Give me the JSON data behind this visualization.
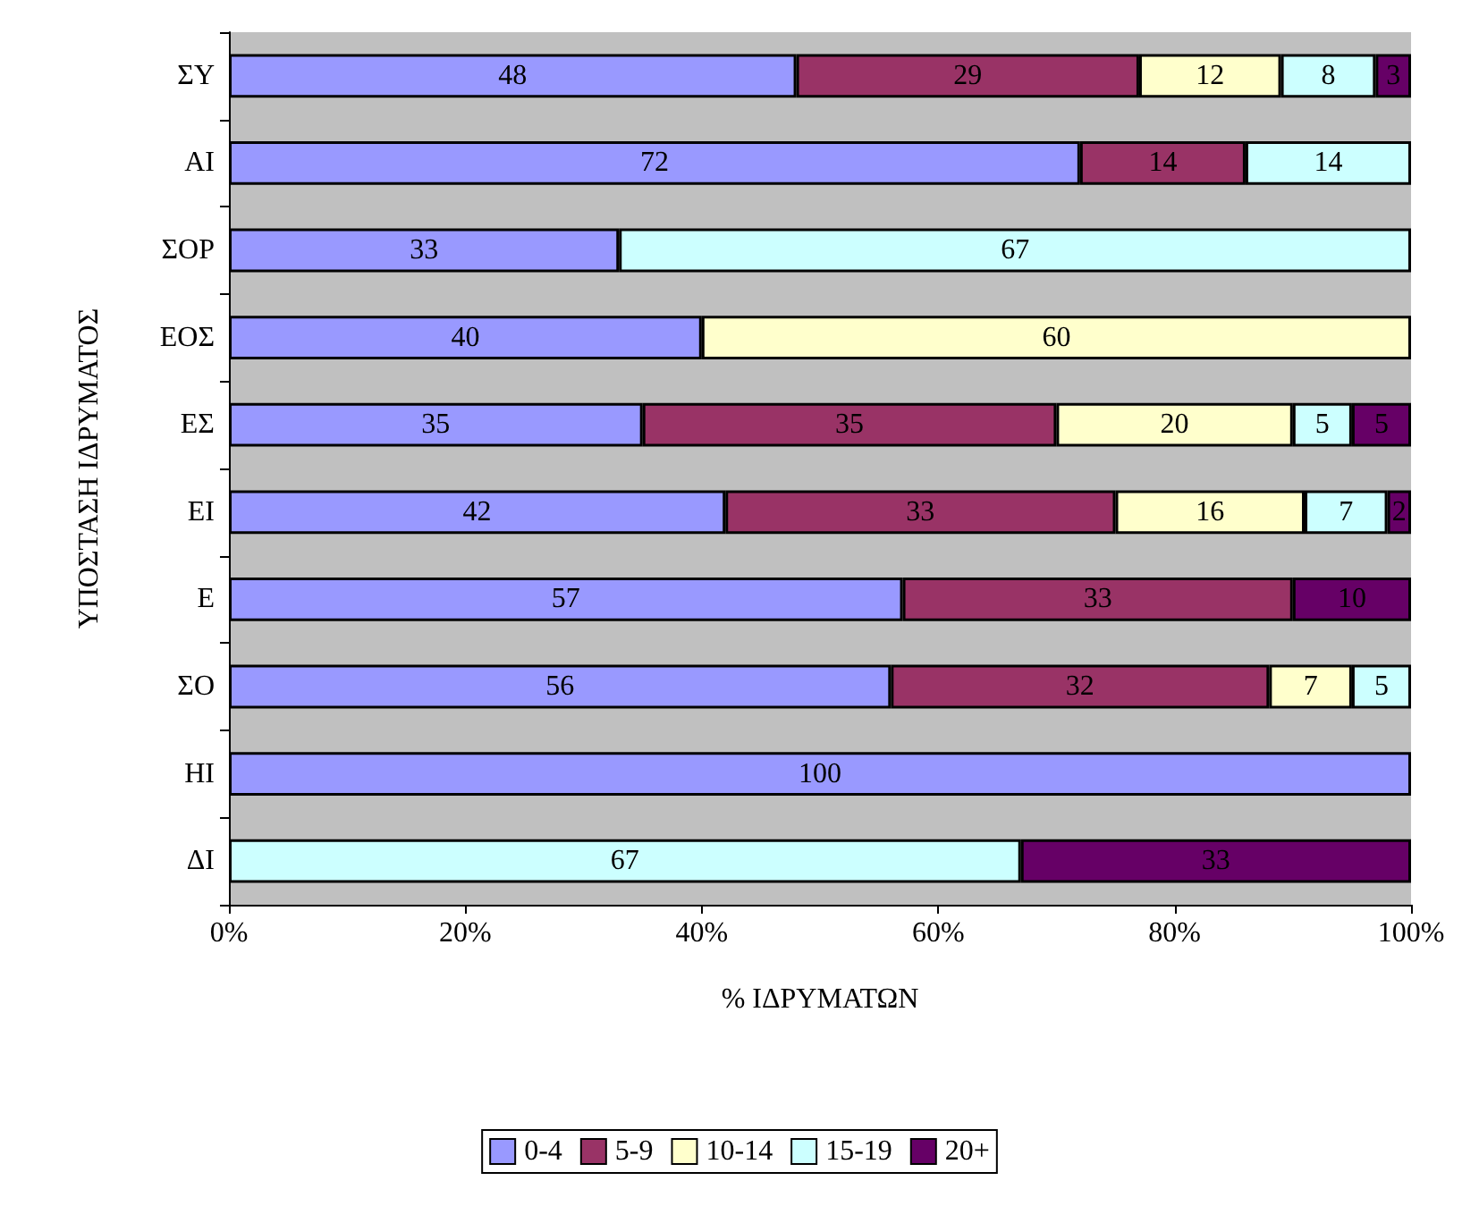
{
  "chart_data": {
    "type": "bar",
    "orientation": "horizontal",
    "stacked": true,
    "xlabel": "% ΙΔΡΥΜΑΤΩΝ",
    "ylabel": "ΥΠΟΣΤΑΣΗ ΙΔΡΥΜΑΤΟΣ",
    "categories": [
      "ΣΥ",
      "ΑΙ",
      "ΣΟΡ",
      "ΕΟΣ",
      "ΕΣ",
      "ΕΙ",
      "Ε",
      "ΣΟ",
      "ΗΙ",
      "ΔΙ"
    ],
    "series": [
      {
        "name": "0-4",
        "color": "#9999ff",
        "values": [
          48,
          72,
          33,
          40,
          35,
          42,
          57,
          56,
          100,
          null
        ]
      },
      {
        "name": "5-9",
        "color": "#993366",
        "values": [
          29,
          14,
          null,
          null,
          35,
          33,
          33,
          32,
          null,
          null
        ]
      },
      {
        "name": "10-14",
        "color": "#ffffcc",
        "values": [
          12,
          null,
          null,
          60,
          20,
          16,
          null,
          7,
          null,
          null
        ]
      },
      {
        "name": "15-19",
        "color": "#ccffff",
        "values": [
          8,
          14,
          67,
          null,
          5,
          7,
          null,
          5,
          null,
          67
        ]
      },
      {
        "name": "20+",
        "color": "#660066",
        "values": [
          3,
          null,
          null,
          null,
          5,
          2,
          10,
          null,
          null,
          33
        ]
      }
    ],
    "xlim": [
      0,
      100
    ],
    "xticks": [
      {
        "value": 0,
        "label": "0%"
      },
      {
        "value": 20,
        "label": "20%"
      },
      {
        "value": 40,
        "label": "40%"
      },
      {
        "value": 60,
        "label": "60%"
      },
      {
        "value": 80,
        "label": "80%"
      },
      {
        "value": 100,
        "label": "100%"
      }
    ],
    "data_labels": true,
    "legend": "bottom",
    "grid": false
  }
}
